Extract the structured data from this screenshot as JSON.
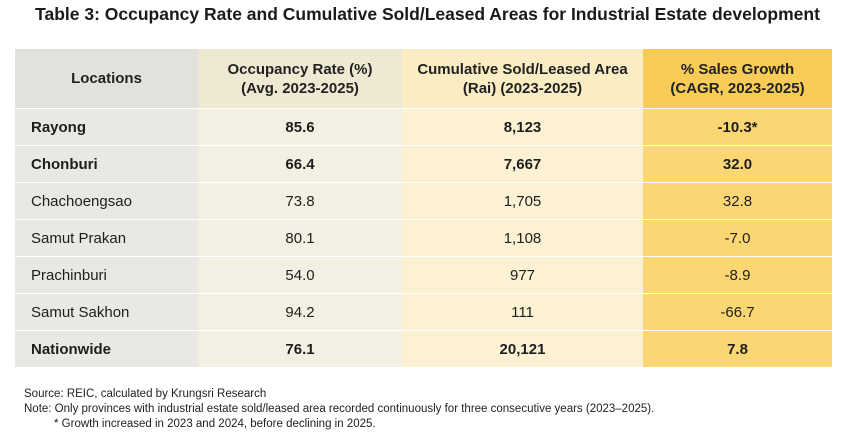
{
  "title": "Table 3: Occupancy Rate and Cumulative Sold/Leased Areas for Industrial Estate development",
  "headers": {
    "locations": "Locations",
    "occupancy_line1": "Occupancy Rate (%)",
    "occupancy_line2": "(Avg. 2023-2025)",
    "area_line1": "Cumulative Sold/Leased Area",
    "area_line2": "(Rai) (2023-2025)",
    "growth_line1": "% Sales Growth",
    "growth_line2": "(CAGR, 2023-2025)"
  },
  "rows": [
    {
      "location": "Rayong",
      "occupancy": "85.6",
      "area": "8,123",
      "growth": "-10.3*",
      "bold": true
    },
    {
      "location": "Chonburi",
      "occupancy": "66.4",
      "area": "7,667",
      "growth": "32.0",
      "bold": true
    },
    {
      "location": "Chachoengsao",
      "occupancy": "73.8",
      "area": "1,705",
      "growth": "32.8",
      "bold": false
    },
    {
      "location": "Samut Prakan",
      "occupancy": "80.1",
      "area": "1,108",
      "growth": "-7.0",
      "bold": false
    },
    {
      "location": "Prachinburi",
      "occupancy": "54.0",
      "area": "977",
      "growth": "-8.9",
      "bold": false
    },
    {
      "location": "Samut Sakhon",
      "occupancy": "94.2",
      "area": "111",
      "growth": "-66.7",
      "bold": false
    },
    {
      "location": "Nationwide",
      "occupancy": "76.1",
      "area": "20,121",
      "growth": "7.8",
      "bold": true
    }
  ],
  "notes": {
    "source": "Source: REIC, calculated by Krungsri Research",
    "note": "Note: Only provinces with industrial estate sold/leased area recorded continuously for three consecutive years (2023–2025).",
    "footnote": "* Growth increased in 2023 and 2024, before declining in 2025."
  },
  "colors": {
    "col_locations": "#e9e8e5",
    "col_occupancy": "#f3efe2",
    "col_area": "#fcf2d3",
    "col_growth": "#fbd773"
  }
}
